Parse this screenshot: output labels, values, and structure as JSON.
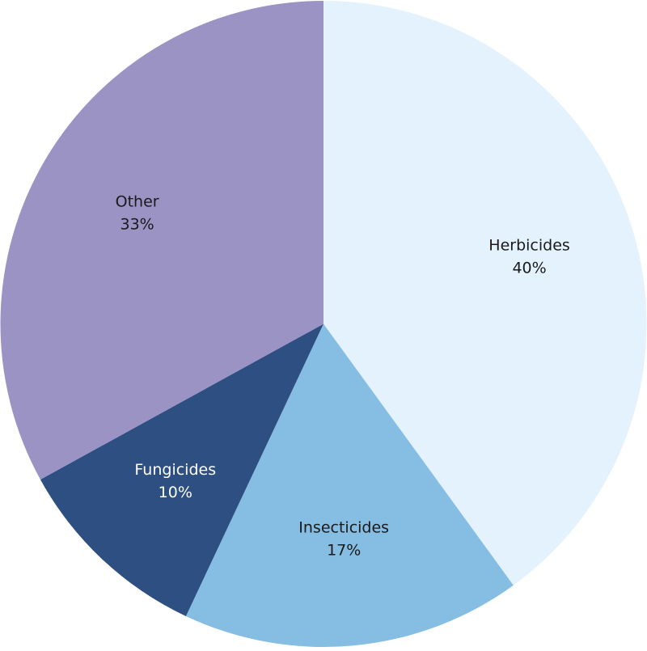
{
  "chart_data": {
    "type": "pie",
    "categories": [
      "Herbicides",
      "Insecticides",
      "Fungicides",
      "Other"
    ],
    "values": [
      40,
      17,
      10,
      33
    ],
    "value_labels": [
      "40%",
      "17%",
      "10%",
      "33%"
    ],
    "colors": [
      "#e3f2fc",
      "#85bde3",
      "#2e4f82",
      "#9b93c4"
    ]
  }
}
